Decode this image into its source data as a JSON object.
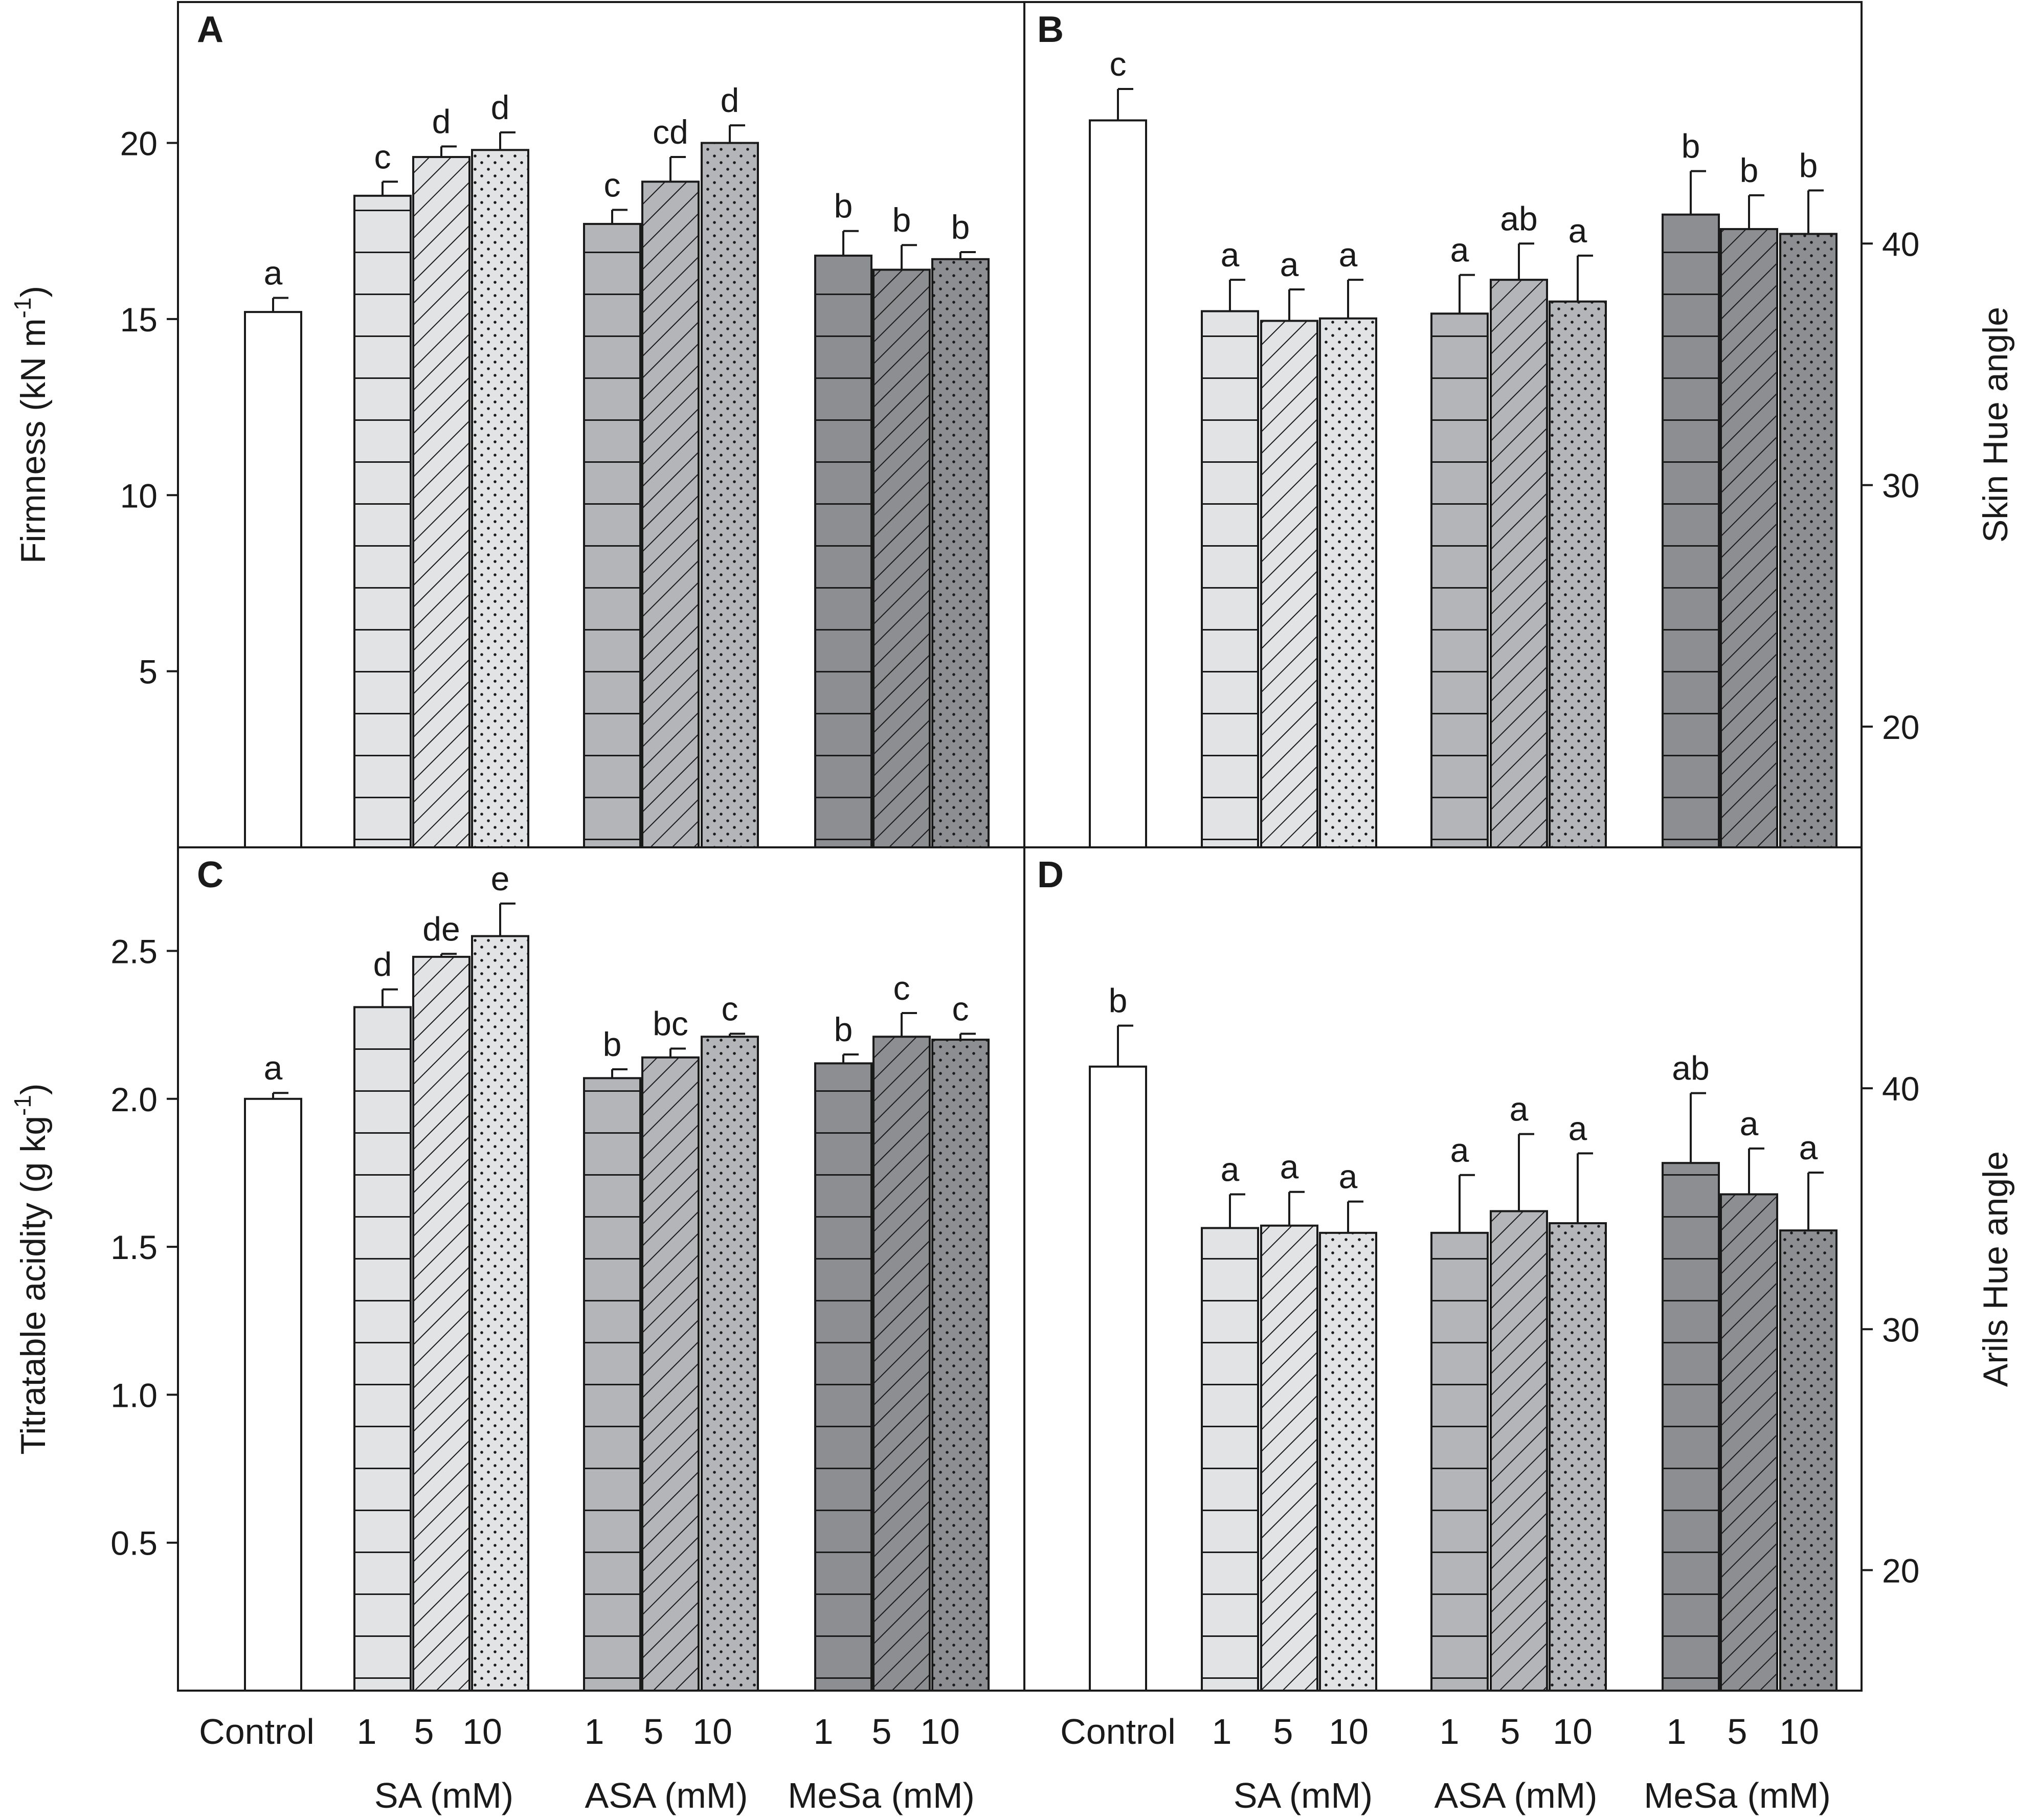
{
  "figure": {
    "x_tick_labels": [
      "Control",
      "1",
      "5",
      "10",
      "1",
      "5",
      "10",
      "1",
      "5",
      "10"
    ],
    "group_labels": [
      "SA (mM)",
      "ASA (mM)",
      "MeSa (mM)"
    ]
  },
  "chart_data": [
    {
      "panel": "A",
      "type": "bar",
      "ylabel": "Firmness (kN m",
      "ylabel_sup": "-1",
      "ylabel_end": ")",
      "ylim": [
        0,
        24
      ],
      "yticks": [
        5,
        10,
        15,
        20
      ],
      "ytick_labels": [
        "5",
        "10",
        "15",
        "20"
      ],
      "categories": [
        "Control",
        "SA 1",
        "SA 5",
        "SA 10",
        "ASA 1",
        "ASA 5",
        "ASA 10",
        "MeSa 1",
        "MeSa 5",
        "MeSa 10"
      ],
      "values": [
        15.2,
        18.5,
        19.6,
        19.8,
        17.7,
        18.9,
        20.0,
        16.8,
        16.4,
        16.7
      ],
      "errors": [
        0.4,
        0.4,
        0.3,
        0.5,
        0.4,
        0.7,
        0.5,
        0.7,
        0.7,
        0.2
      ],
      "letters": [
        "a",
        "c",
        "d",
        "d",
        "c",
        "cd",
        "d",
        "b",
        "b",
        "b"
      ]
    },
    {
      "panel": "B",
      "type": "bar",
      "ylabel": "Skin Hue angle",
      "ylim": [
        15,
        50
      ],
      "yticks": [
        20,
        30,
        40
      ],
      "ytick_labels": [
        "20",
        "30",
        "40"
      ],
      "categories": [
        "Control",
        "SA 1",
        "SA 5",
        "SA 10",
        "ASA 1",
        "ASA 5",
        "ASA 10",
        "MeSa 1",
        "MeSa 5",
        "MeSa 10"
      ],
      "values": [
        45.1,
        37.2,
        36.8,
        36.9,
        37.1,
        38.5,
        37.6,
        41.2,
        40.6,
        40.4
      ],
      "errors": [
        1.3,
        1.3,
        1.3,
        1.6,
        1.6,
        1.5,
        1.9,
        1.8,
        1.4,
        1.8
      ],
      "letters": [
        "c",
        "a",
        "a",
        "a",
        "a",
        "ab",
        "a",
        "b",
        "b",
        "b"
      ]
    },
    {
      "panel": "C",
      "type": "bar",
      "ylabel": "Titratable acidity (g kg",
      "ylabel_sup": "-1",
      "ylabel_end": ")",
      "ylim": [
        0,
        2.85
      ],
      "yticks": [
        0.5,
        1.0,
        1.5,
        2.0,
        2.5
      ],
      "ytick_labels": [
        "0.5",
        "1.0",
        "1.5",
        "2.0",
        "2.5"
      ],
      "categories": [
        "Control",
        "SA 1",
        "SA 5",
        "SA 10",
        "ASA 1",
        "ASA 5",
        "ASA 10",
        "MeSa 1",
        "MeSa 5",
        "MeSa 10"
      ],
      "values": [
        2.0,
        2.31,
        2.48,
        2.55,
        2.07,
        2.14,
        2.21,
        2.12,
        2.21,
        2.2
      ],
      "errors": [
        0.02,
        0.06,
        0.01,
        0.11,
        0.03,
        0.03,
        0.01,
        0.03,
        0.08,
        0.02
      ],
      "letters": [
        "a",
        "d",
        "de",
        "e",
        "b",
        "bc",
        "c",
        "b",
        "c",
        "c"
      ]
    },
    {
      "panel": "D",
      "type": "bar",
      "ylabel": "Arils Hue angle",
      "ylim": [
        15,
        50
      ],
      "yticks": [
        20,
        30,
        40
      ],
      "ytick_labels": [
        "20",
        "30",
        "40"
      ],
      "categories": [
        "Control",
        "SA 1",
        "SA 5",
        "SA 10",
        "ASA 1",
        "ASA 5",
        "ASA 10",
        "MeSa 1",
        "MeSa 5",
        "MeSa 10"
      ],
      "values": [
        40.9,
        34.2,
        34.3,
        34.0,
        34.0,
        34.9,
        34.4,
        36.9,
        35.6,
        34.1
      ],
      "errors": [
        1.7,
        1.4,
        1.4,
        1.3,
        2.4,
        3.2,
        2.9,
        2.9,
        1.9,
        2.4
      ],
      "letters": [
        "b",
        "a",
        "a",
        "a",
        "a",
        "a",
        "a",
        "ab",
        "a",
        "a"
      ]
    }
  ]
}
